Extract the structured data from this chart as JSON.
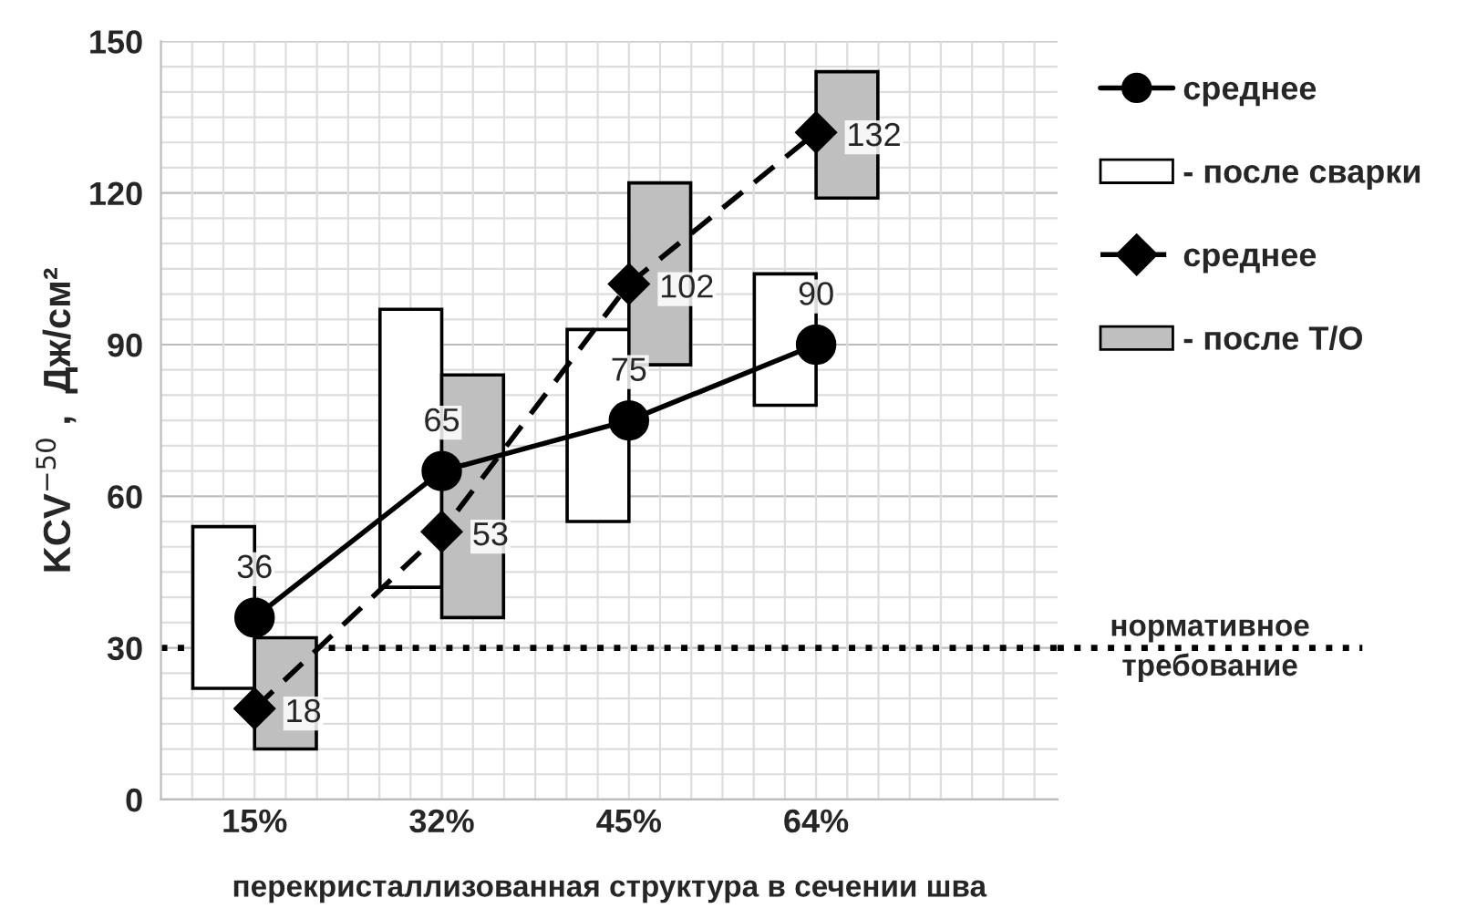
{
  "chart_data": {
    "type": "bar",
    "xlabel": "перекристаллизованная структура в сечении шва",
    "ylabel": "KCV$^{−50}$ ,  Дж/см²",
    "categories": [
      "15%",
      "32%",
      "45%",
      "64%"
    ],
    "series": [
      {
        "name": "- после сварки",
        "color": "#ffffff",
        "base": [
          22,
          42,
          55,
          78
        ],
        "values": [
          32,
          55,
          38,
          26
        ]
      },
      {
        "name": "- после Т/О",
        "color": "#bfbfbf",
        "base": [
          10,
          36,
          86,
          119
        ],
        "values": [
          22,
          48,
          36,
          25
        ]
      },
      {
        "name": "среднее",
        "type": "line",
        "color": "#000000",
        "marker": "circle",
        "line_style": "solid",
        "values": [
          36,
          65,
          75,
          90
        ],
        "value_labels": [
          "36",
          "65",
          "75",
          "90"
        ]
      },
      {
        "name": "среднее",
        "type": "line",
        "color": "#000000",
        "marker": "diamond",
        "line_style": "dashed",
        "values": [
          18,
          53,
          102,
          132
        ],
        "value_labels": [
          "18",
          "53",
          "102",
          "132"
        ]
      }
    ],
    "ylim": [
      0,
      150
    ],
    "yticks": [
      0,
      30,
      60,
      90,
      120,
      150
    ],
    "ref_lines": [
      {
        "axis": "y",
        "value": 30,
        "label": "нормативное\nтребование",
        "line_style": "dotted",
        "color": "#000000"
      }
    ],
    "grid": true,
    "legend": "right"
  }
}
